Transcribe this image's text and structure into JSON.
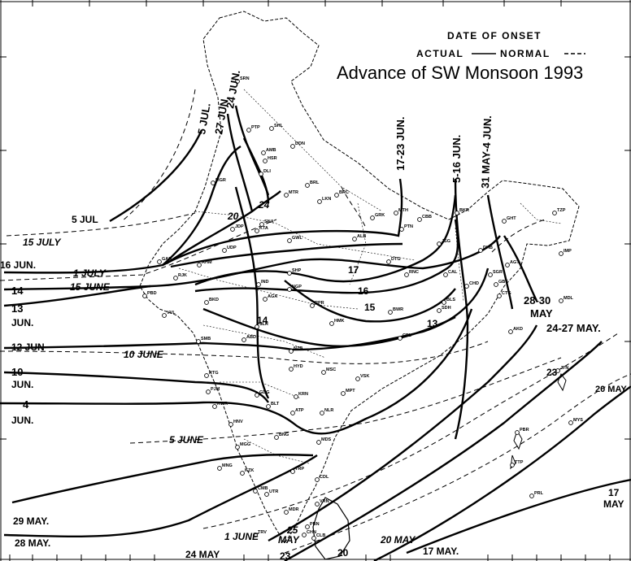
{
  "title": "Advance of SW Monsoon 1993",
  "legend": {
    "heading": "DATE OF ONSET",
    "actual": "ACTUAL",
    "normal": "NORMAL"
  },
  "isochrone_labels": {
    "jul5_top": "5 JUL.",
    "jun27": "27 JUN.",
    "jun24_top": "24 JUN.",
    "jun17_23": "17-23 JUN.",
    "jun5_16": "5-16 JUN.",
    "may31_jun4": "31 MAY-4 JUN.",
    "jul5_left": "5 JUL",
    "july15": "15 JULY",
    "jun16_left": "16 JUN.",
    "july1": "1 JULY",
    "june15": "15 JUNE",
    "n14_left": "14",
    "n13_left": "13",
    "jun_13": "JUN.",
    "n12_left": "12 JUN",
    "june10": "10 JUNE",
    "n10_left": "10",
    "jun_10": "JUN.",
    "n4_left": "4",
    "jun_4": "JUN.",
    "june5": "5 JUNE",
    "may29": "29 MAY.",
    "may28": "28 MAY.",
    "june1": "1 JUNE",
    "may24_bottom": "24 MAY",
    "n23_bottom": "23",
    "n25": "25",
    "may_25": "MAY",
    "n20_bottom": "20",
    "may20": "20 MAY",
    "may17_bottom": "17 MAY.",
    "may28_30": "28-30",
    "may_28_30": "MAY",
    "may24_27": "24-27 MAY.",
    "n23_right": "23",
    "may20_right": "20 MAY",
    "n17_right": "17",
    "may_17_right": "MAY",
    "n24_mid": "24",
    "n20_mid": "20",
    "n17_mid": "17",
    "n16_mid": "16",
    "n15_mid": "15",
    "n14_mid": "14",
    "n13_mid": "13"
  },
  "stations": [
    "SRN",
    "SHL",
    "DDN",
    "PTP",
    "AMB",
    "HSR",
    "DLI",
    "MTR",
    "BRL",
    "LKN",
    "BRC",
    "GRK",
    "MTH",
    "CBB",
    "PTN",
    "BKR",
    "MGR",
    "JDP",
    "KTA",
    "GWL",
    "ALB",
    "DTG",
    "GAN",
    "RJK",
    "AHM",
    "UDP",
    "SNA",
    "JSG",
    "RNC",
    "CAL",
    "SGR",
    "PBD",
    "DHB",
    "IND",
    "RPR",
    "BLS",
    "BWR",
    "CHD",
    "SDH",
    "VVL",
    "BKD",
    "AGA",
    "SHP",
    "NGP",
    "SLR",
    "HMK",
    "CPL",
    "AKD",
    "TZP",
    "GHT",
    "IMP",
    "AGT",
    "GBT",
    "CTG",
    "MDL",
    "SMB",
    "ABD",
    "NZB",
    "HYD",
    "MSC",
    "VSK",
    "RTG",
    "PJM",
    "GDG",
    "KRN",
    "MPT",
    "NLR",
    "ATP",
    "BLT",
    "KWR",
    "HNV",
    "MGG",
    "BNG",
    "MDS",
    "MNG",
    "CDL",
    "TRP",
    "KZK",
    "CMB",
    "UTR",
    "MDR",
    "VRN",
    "PBN",
    "CHN",
    "TRV",
    "CLB",
    "JFN",
    "PBR",
    "MYS",
    "TTP",
    "PRL",
    "CRB"
  ]
}
